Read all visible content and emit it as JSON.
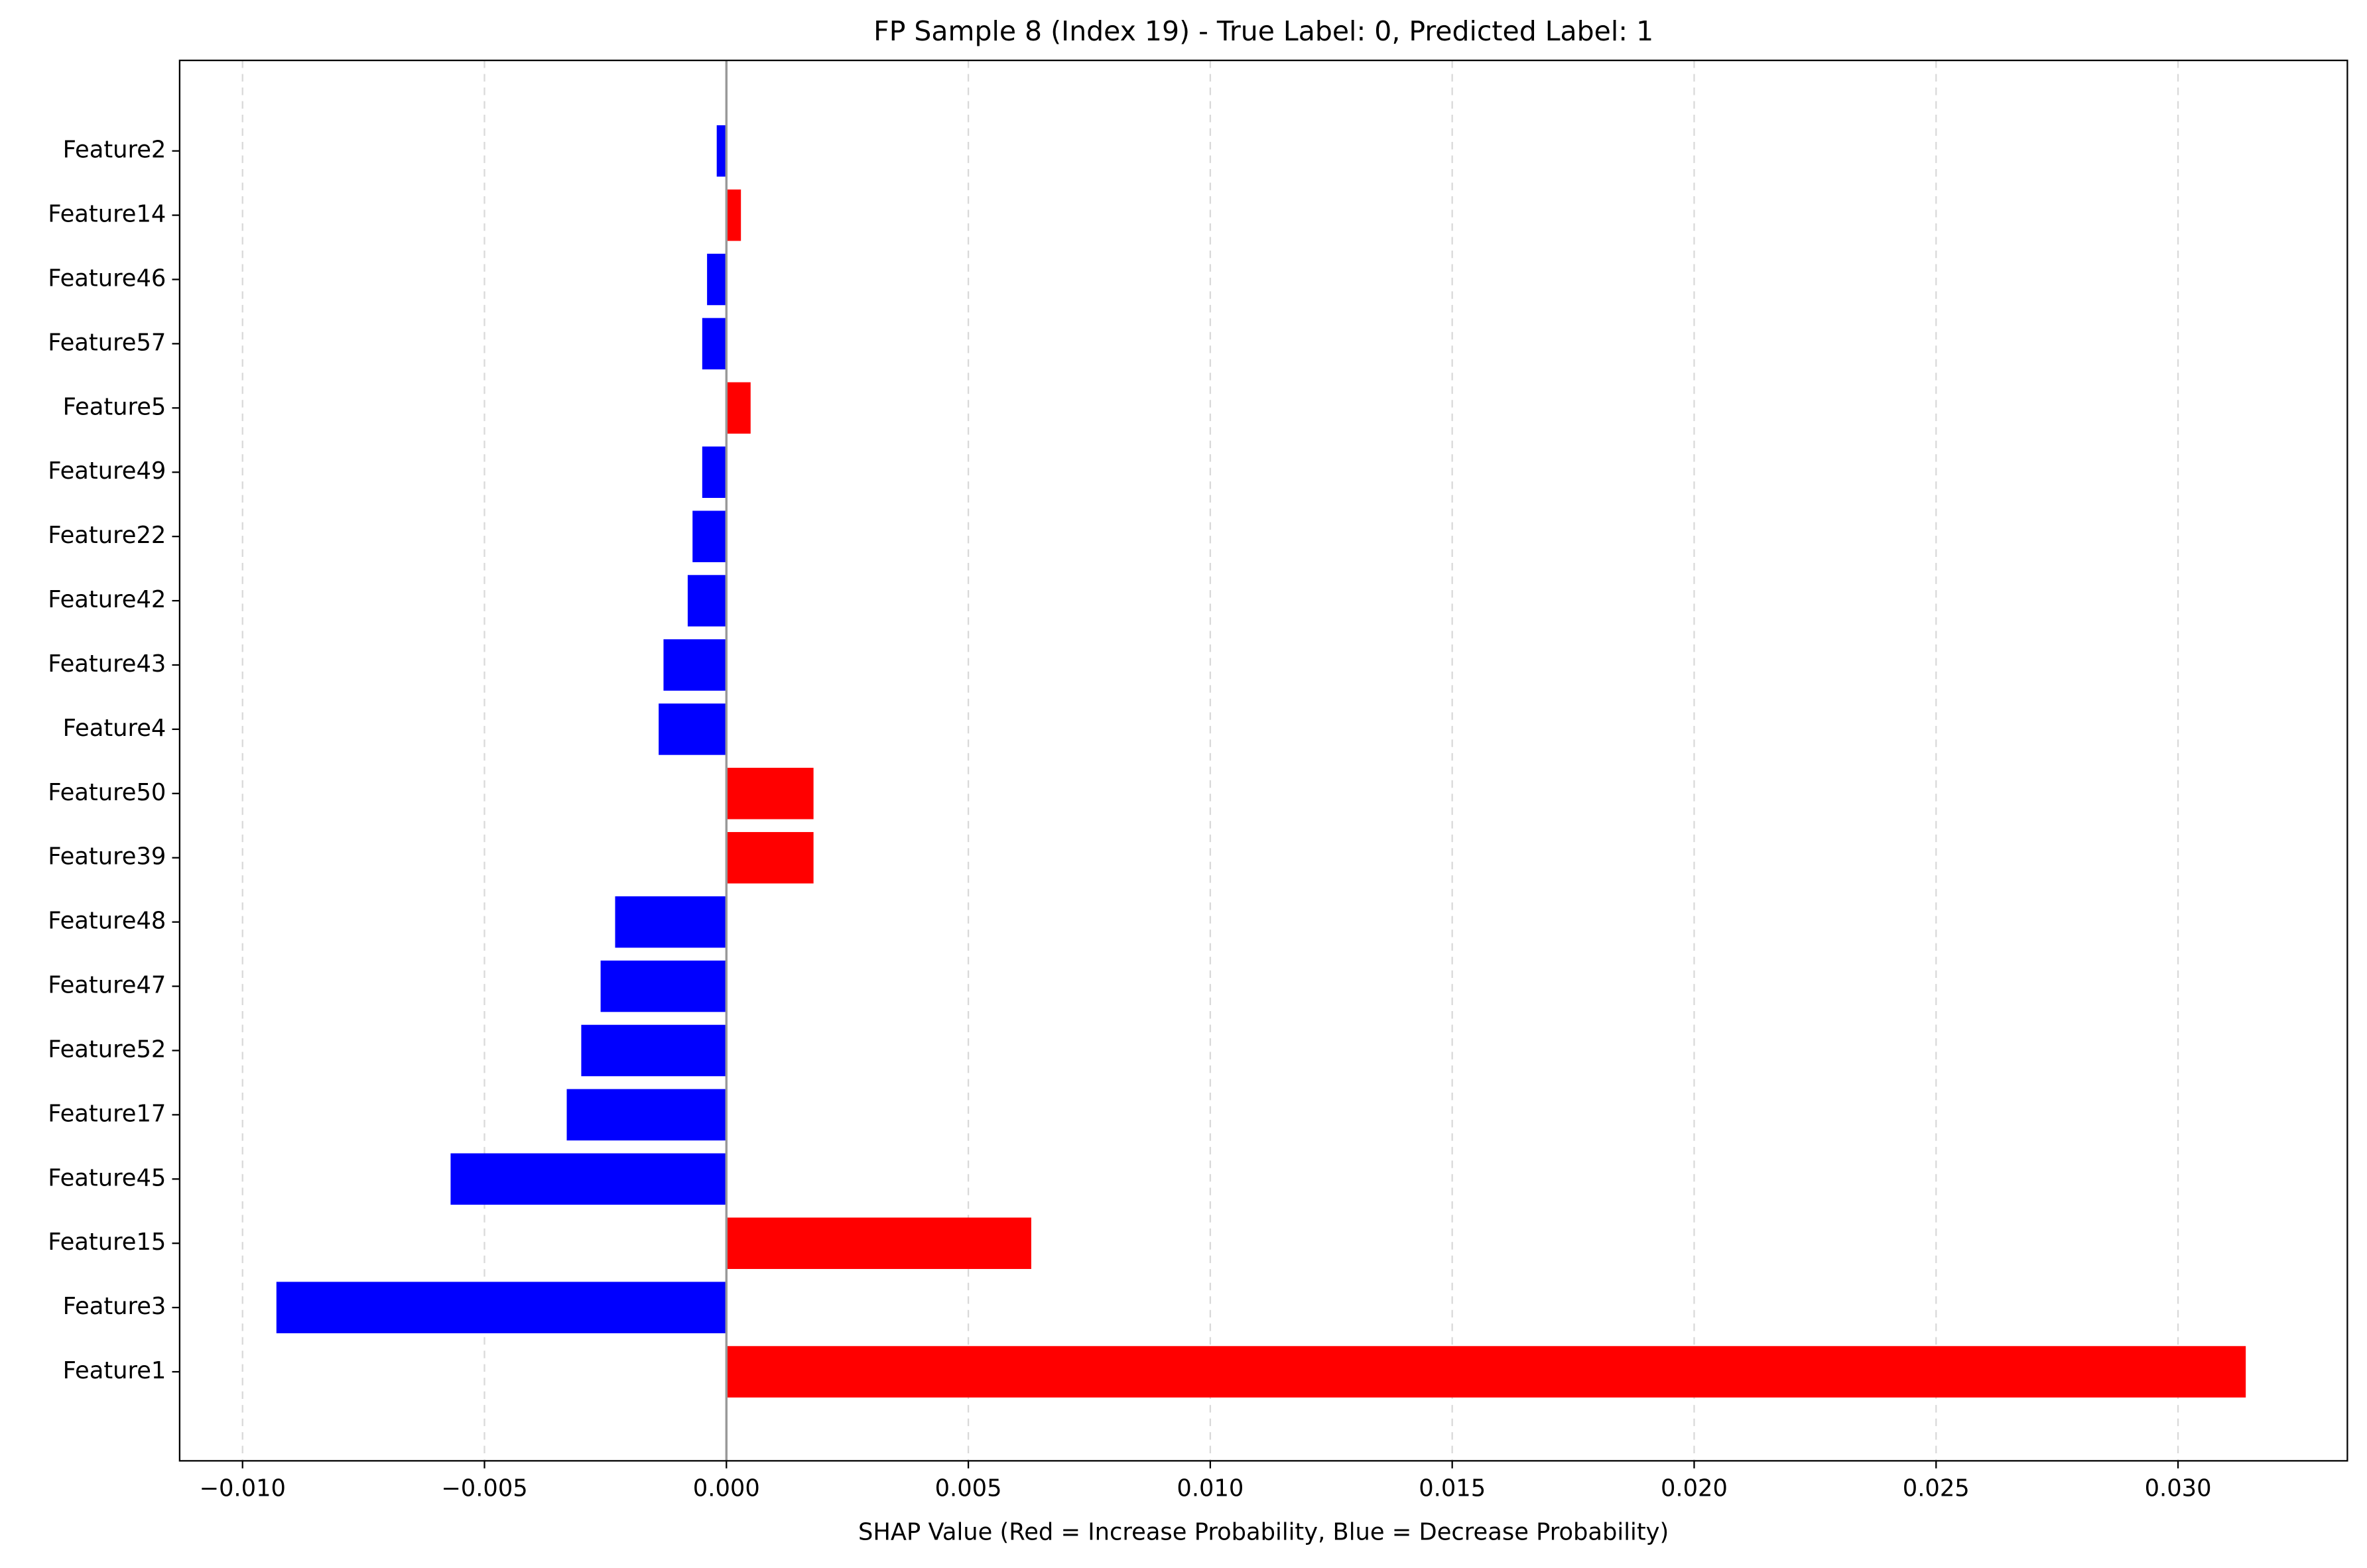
{
  "chart_data": {
    "type": "barh",
    "title": "FP Sample 8 (Index 19) - True Label: 0, Predicted Label: 1",
    "x_label": "SHAP Value (Red = Increase Probability, Blue = Decrease Probability)",
    "categories": [
      "Feature2",
      "Feature14",
      "Feature46",
      "Feature57",
      "Feature5",
      "Feature49",
      "Feature22",
      "Feature42",
      "Feature43",
      "Feature4",
      "Feature50",
      "Feature39",
      "Feature48",
      "Feature47",
      "Feature52",
      "Feature17",
      "Feature45",
      "Feature15",
      "Feature3",
      "Feature1"
    ],
    "values": [
      -0.0002,
      0.0003,
      -0.0004,
      -0.0005,
      0.0005,
      -0.0005,
      -0.0007,
      -0.0008,
      -0.0013,
      -0.0014,
      0.0018,
      0.0018,
      -0.0023,
      -0.0026,
      -0.003,
      -0.0033,
      -0.0057,
      0.0063,
      -0.0093,
      0.0314
    ],
    "colors": [
      "#0000ff",
      "#ff0000",
      "#0000ff",
      "#0000ff",
      "#ff0000",
      "#0000ff",
      "#0000ff",
      "#0000ff",
      "#0000ff",
      "#0000ff",
      "#ff0000",
      "#ff0000",
      "#0000ff",
      "#0000ff",
      "#0000ff",
      "#0000ff",
      "#0000ff",
      "#ff0000",
      "#0000ff",
      "#ff0000"
    ],
    "xlim": [
      -0.0113,
      0.0335
    ],
    "xticks": [
      {
        "value": -0.01,
        "label": "−0.010"
      },
      {
        "value": -0.005,
        "label": "−0.005"
      },
      {
        "value": 0,
        "label": "0.000"
      },
      {
        "value": 0.005,
        "label": "0.005"
      },
      {
        "value": 0.01,
        "label": "0.010"
      },
      {
        "value": 0.015,
        "label": "0.015"
      },
      {
        "value": 0.02,
        "label": "0.020"
      },
      {
        "value": 0.025,
        "label": "0.025"
      },
      {
        "value": 0.03,
        "label": "0.030"
      }
    ],
    "grid": true
  }
}
